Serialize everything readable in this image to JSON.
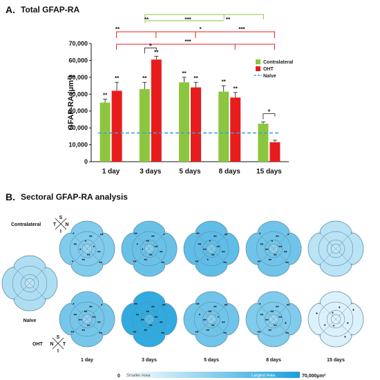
{
  "panel_a": {
    "letter": "A.",
    "title": "Total GFAP-RA"
  },
  "panel_b": {
    "letter": "B.",
    "title": "Sectoral GFAP-RA analysis"
  },
  "chart_data": {
    "type": "bar",
    "title": "Total GFAP-RA",
    "ylabel": "GFAP-RA (μm²)",
    "ylim": [
      0,
      70000
    ],
    "yticks": [
      0,
      10000,
      20000,
      30000,
      40000,
      50000,
      60000,
      70000
    ],
    "ytick_labels": [
      "0",
      "10,000",
      "20,000",
      "30,000",
      "40,000",
      "50,000",
      "60,000",
      "70,000"
    ],
    "categories": [
      "1 day",
      "3 days",
      "5 days",
      "8 days",
      "15 days"
    ],
    "series": [
      {
        "name": "Contralateral",
        "color": "#8cc63f",
        "values": [
          35000,
          43000,
          47000,
          41500,
          22500
        ],
        "errors": [
          2000,
          4000,
          3000,
          3500,
          1000
        ],
        "marks": [
          "**",
          "**",
          "**",
          "**",
          ""
        ]
      },
      {
        "name": "OHT",
        "color": "#e81c1c",
        "values": [
          42000,
          60500,
          44000,
          38000,
          11500
        ],
        "errors": [
          5000,
          2000,
          3000,
          3000,
          1200
        ],
        "marks": [
          "**",
          "**",
          "**",
          "**",
          ""
        ]
      }
    ],
    "reference_line": {
      "name": "Naïve",
      "value": 17000,
      "color": "#3ba0d6"
    },
    "legend_position": "right",
    "pair_comparisons": [
      {
        "category": "3 days",
        "label": "+"
      },
      {
        "category": "15 days",
        "label": "+"
      }
    ],
    "green_brackets": [
      {
        "from": "3 days",
        "mid": "8 days",
        "to": "15 days",
        "labels": [
          "**",
          "***",
          "**"
        ]
      }
    ],
    "red_brackets": [
      {
        "from": "1 day",
        "mid": "5 days",
        "to": "15 days",
        "labels": [
          "**",
          "*",
          "***"
        ]
      },
      {
        "from": "1 day",
        "mid": "8 days",
        "to": "15 days",
        "labels": [
          "***"
        ]
      }
    ]
  },
  "sectoral": {
    "compass_contralateral": {
      "group": "Contralateral",
      "top": "S",
      "left": "T",
      "right": "N",
      "bottom": "I"
    },
    "compass_oht": {
      "group": "OHT",
      "top": "S",
      "left": "N",
      "right": "T",
      "bottom": "I"
    },
    "naive_label": "Naïve",
    "day_labels": [
      "1 day",
      "3 days",
      "5 days",
      "8 days",
      "15 days"
    ],
    "color_scale": {
      "min_label": "0",
      "low_text": "Smaller Area",
      "high_text": "Largest Area",
      "max_label": "70,000μm²",
      "low_color": "#ffffff",
      "high_color": "#1aa0dc"
    },
    "naive_intensity": 0.35,
    "contralateral_intensity": [
      0.55,
      0.65,
      0.7,
      0.62,
      0.3
    ],
    "oht_intensity": [
      0.6,
      0.9,
      0.62,
      0.55,
      0.15
    ],
    "contralateral_marks": [
      [
        "**",
        "**",
        "**",
        "**",
        "*",
        "*",
        "**",
        "*",
        "*",
        "**",
        "**",
        "*"
      ],
      [
        "**",
        "**",
        "**",
        "**",
        "**",
        "*",
        "*",
        "**",
        "**",
        "**",
        "*",
        "**"
      ],
      [
        "**",
        "**",
        "**",
        "*",
        "**",
        "**",
        "**",
        "**",
        "*",
        "**",
        "**",
        "**"
      ],
      [
        "**",
        "**",
        "**",
        "**",
        "**",
        "**",
        "**",
        "*",
        "*",
        "**",
        "*",
        "**"
      ],
      []
    ],
    "oht_marks": [
      [
        "**",
        "**",
        "**",
        "**",
        "**",
        "**",
        "**",
        "*",
        "**",
        "**",
        "*",
        "**"
      ],
      [
        "**",
        "**",
        "**",
        "**",
        "**",
        "**",
        "**",
        "**",
        "**",
        "**",
        "**",
        "**"
      ],
      [
        "**",
        "**",
        "**",
        "**",
        "**",
        "**",
        "*",
        "**",
        "**",
        "**",
        "**",
        "*"
      ],
      [
        "+",
        "**",
        "**",
        "**",
        "**",
        "**",
        "**",
        "*",
        "**",
        "**",
        "**",
        "**"
      ],
      [
        "+",
        "+",
        "+",
        "+",
        "+",
        "+",
        "+",
        "+"
      ]
    ]
  }
}
